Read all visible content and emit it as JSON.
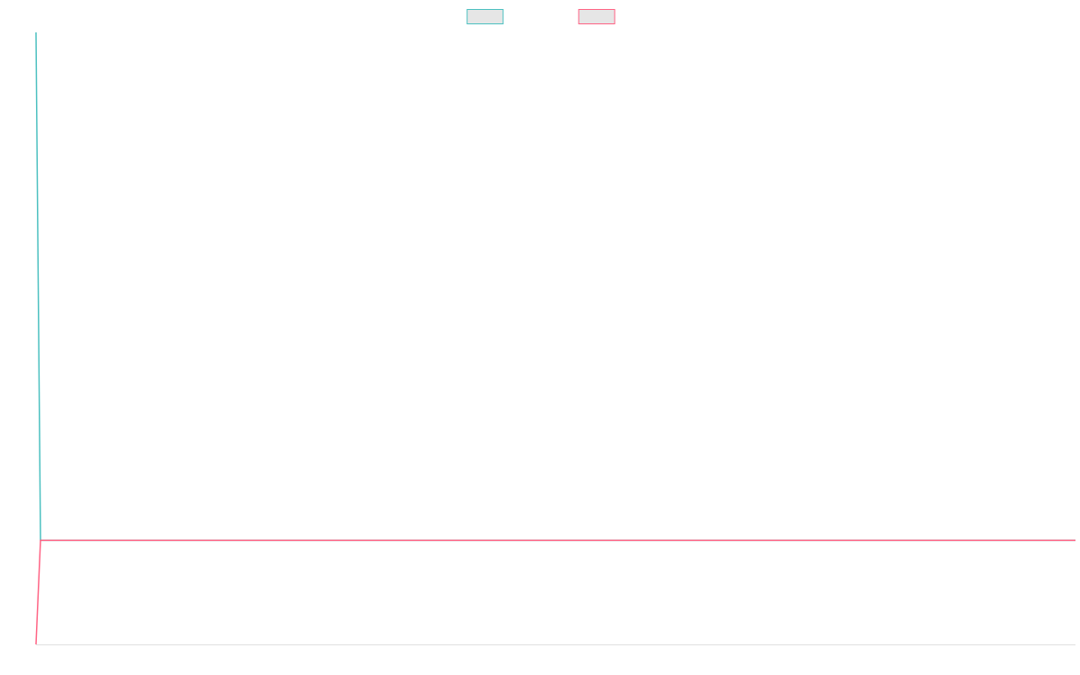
{
  "chart_data": {
    "type": "line",
    "x": [
      0,
      1,
      231
    ],
    "xlim": [
      0,
      231
    ],
    "ylim": [
      0,
      100
    ],
    "legend": "top",
    "grid": false,
    "series": [
      {
        "color": "#4bc0c0",
        "values": [
          100,
          17,
          17
        ]
      },
      {
        "color": "#ff6384",
        "values": [
          0,
          17,
          17
        ]
      }
    ]
  }
}
